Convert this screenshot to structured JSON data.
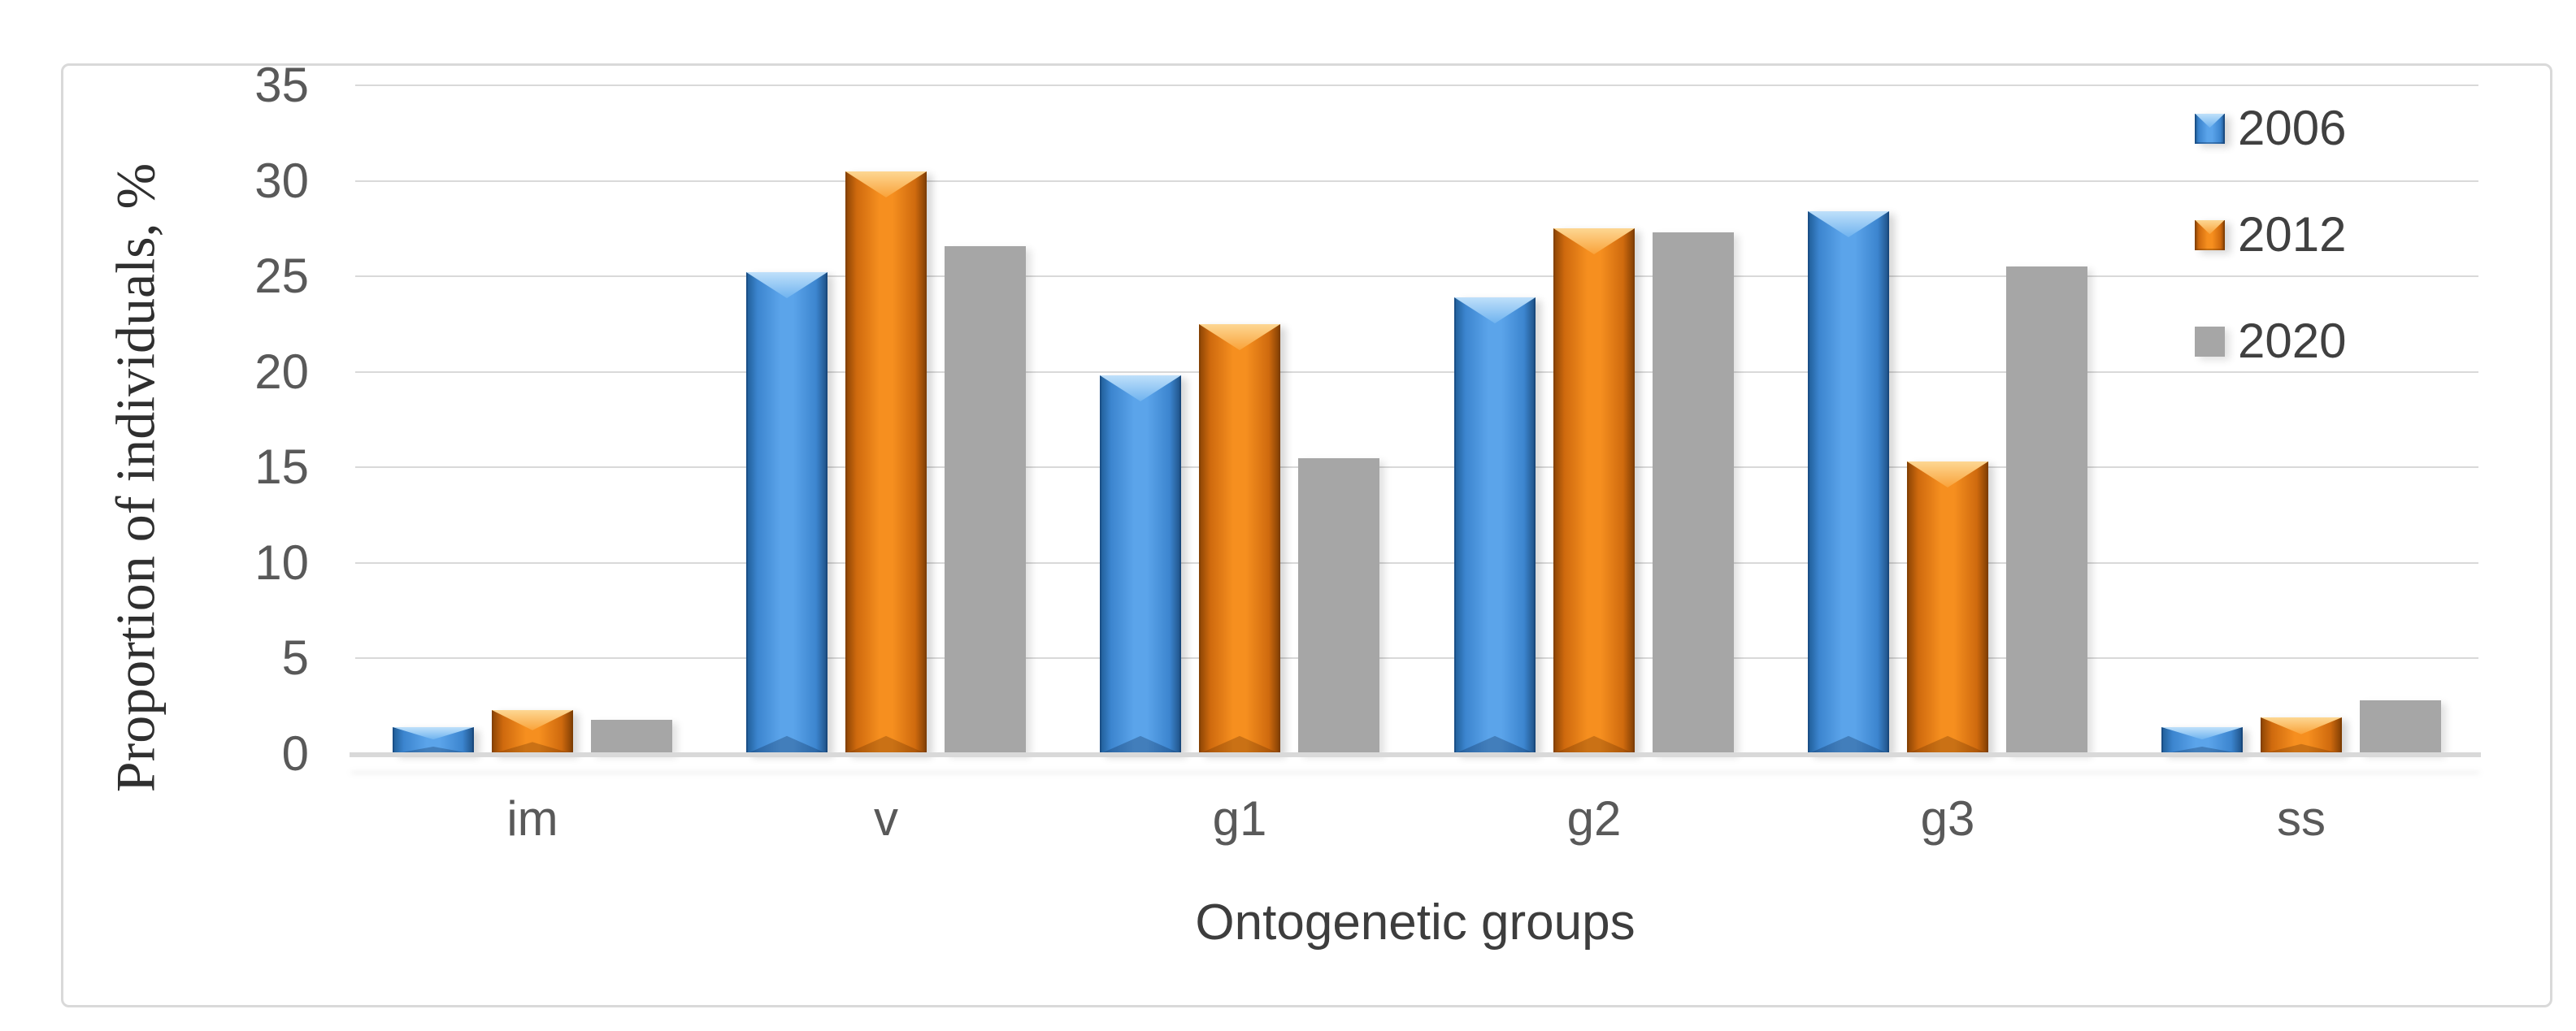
{
  "figure": {
    "background": "#ffffff",
    "border_color": "#d9d9d9"
  },
  "chart_data": {
    "type": "bar",
    "title": "",
    "xlabel": "Ontogenetic groups",
    "ylabel": "Proportion of individuals, %",
    "categories": [
      "im",
      "v",
      "g1",
      "g2",
      "g3",
      "ss"
    ],
    "series": [
      {
        "name": "2006",
        "color": "#3c85cf",
        "values": [
          1.4,
          25.2,
          19.8,
          23.9,
          28.4,
          1.4
        ]
      },
      {
        "name": "2012",
        "color": "#ed7d31",
        "values": [
          2.3,
          30.5,
          22.5,
          27.5,
          15.3,
          1.9
        ]
      },
      {
        "name": "2020",
        "color": "#a6a6a6",
        "values": [
          1.8,
          26.6,
          15.5,
          27.3,
          25.5,
          2.8
        ]
      }
    ],
    "ylim": [
      0,
      35
    ],
    "yticks": [
      0,
      5,
      10,
      15,
      20,
      25,
      30,
      35
    ],
    "grid": true,
    "legend_position": "top-right",
    "tick_color": "#595959",
    "gridline_color": "#d9d9d9"
  }
}
